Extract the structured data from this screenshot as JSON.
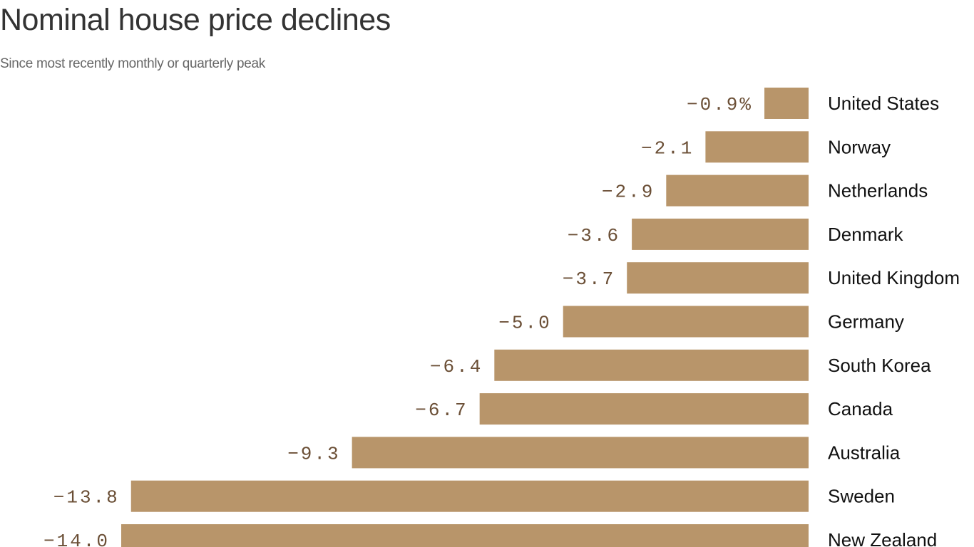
{
  "chart_data": {
    "type": "bar",
    "orientation": "horizontal",
    "title": "Nominal house price declines",
    "subtitle": "Since most recently monthly or quarterly peak",
    "categories": [
      "United States",
      "Norway",
      "Netherlands",
      "Denmark",
      "United Kingdom",
      "Germany",
      "South Korea",
      "Canada",
      "Australia",
      "Sweden",
      "New Zealand"
    ],
    "values": [
      -0.9,
      -2.1,
      -2.9,
      -3.6,
      -3.7,
      -5.0,
      -6.4,
      -6.7,
      -9.3,
      -13.8,
      -14.0
    ],
    "value_labels": [
      "−0.9%",
      "−2.1",
      "−2.9",
      "−3.6",
      "−3.7",
      "−5.0",
      "−6.4",
      "−6.7",
      "−9.3",
      "−13.8",
      "−14.0"
    ],
    "unit": "%",
    "xlabel": "",
    "ylabel": "",
    "xlim": [
      -14.0,
      0
    ],
    "grid": false,
    "legend": "none",
    "bar_color": "#b8956a",
    "label_color": "#6b4f36"
  }
}
